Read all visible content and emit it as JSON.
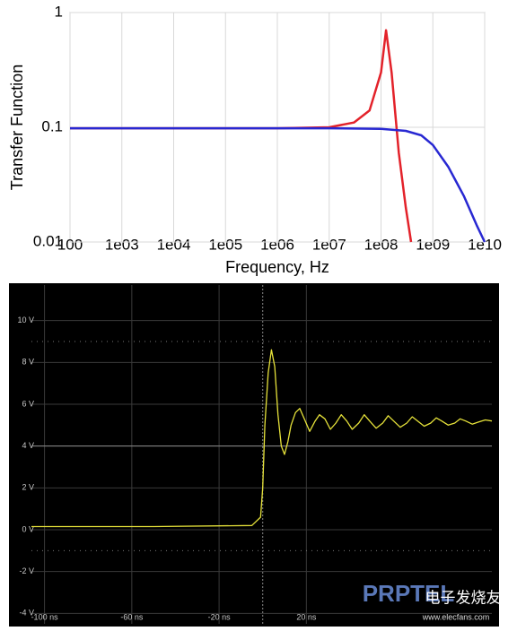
{
  "chart_data": [
    {
      "type": "line",
      "xscale": "log",
      "yscale": "log",
      "ylabel": "Transfer Function",
      "xlabel": "Frequency, Hz",
      "xlim": [
        100,
        10000000000
      ],
      "ylim": [
        0.01,
        1
      ],
      "xticks": [
        100,
        {
          "value": 1000,
          "label": "1e03"
        },
        {
          "value": 10000,
          "label": "1e04"
        },
        {
          "value": 100000,
          "label": "1e05"
        },
        {
          "value": 1000000,
          "label": "1e06"
        },
        {
          "value": 10000000,
          "label": "1e07"
        },
        {
          "value": 100000000,
          "label": "1e08"
        },
        {
          "value": 1000000000,
          "label": "1e09"
        },
        {
          "value": 10000000000,
          "label": "1e10"
        }
      ],
      "yticks": [
        0.01,
        0.1,
        1
      ],
      "grid": true,
      "series": [
        {
          "color": "#e3222a",
          "x": [
            100,
            1000,
            10000,
            100000,
            1000000,
            10000000,
            30000000,
            60000000,
            100000000,
            125000000,
            160000000,
            220000000,
            300000000,
            380000000
          ],
          "values": [
            0.098,
            0.098,
            0.098,
            0.098,
            0.098,
            0.1,
            0.11,
            0.14,
            0.3,
            0.7,
            0.3,
            0.06,
            0.02,
            0.01
          ]
        },
        {
          "color": "#2828d2",
          "x": [
            100,
            1000,
            10000,
            100000,
            1000000,
            10000000,
            100000000,
            300000000,
            600000000,
            1000000000,
            2000000000,
            4000000000,
            7000000000,
            10000000000
          ],
          "values": [
            0.098,
            0.098,
            0.098,
            0.098,
            0.098,
            0.098,
            0.097,
            0.093,
            0.085,
            0.07,
            0.045,
            0.025,
            0.014,
            0.01
          ]
        }
      ]
    },
    {
      "type": "line",
      "background": "#000000",
      "xlim": [
        -106,
        105
      ],
      "ylim": [
        -4.5,
        11.7
      ],
      "xticks": [
        {
          "value": -100,
          "label": "-100 ns"
        },
        {
          "value": -60,
          "label": "-60 ns"
        },
        {
          "value": -20,
          "label": "-20 ns"
        },
        {
          "value": 20,
          "label": "20 ns"
        }
      ],
      "yticks": [
        {
          "value": 10,
          "label": "10 V"
        },
        {
          "value": 8,
          "label": "8 V"
        },
        {
          "value": 6,
          "label": "6 V"
        },
        {
          "value": 4,
          "label": "4 V"
        },
        {
          "value": 2,
          "label": "2 V"
        },
        {
          "value": 0,
          "label": "0 V"
        },
        {
          "value": -2,
          "label": "-2 V"
        },
        {
          "value": -4,
          "label": "-4 V"
        }
      ],
      "grid": true,
      "series": [
        {
          "color": "#e6e23a",
          "x": [
            -106,
            -50,
            -5,
            -1,
            0,
            1,
            2.5,
            4,
            5.5,
            7,
            8.5,
            10,
            11.5,
            13,
            15,
            17,
            19.5,
            21.5,
            24,
            26,
            28.5,
            31,
            33.5,
            36,
            38.5,
            41,
            44,
            46.5,
            49,
            52,
            55,
            57.5,
            60,
            63,
            66,
            68.5,
            71,
            74,
            77,
            79.5,
            82,
            85,
            88,
            90.5,
            93,
            96,
            99,
            102,
            105
          ],
          "values": [
            0.15,
            0.15,
            0.2,
            0.6,
            2,
            5,
            7.5,
            8.6,
            7.8,
            5.5,
            4,
            3.6,
            4.2,
            5,
            5.6,
            5.8,
            5.2,
            4.7,
            5.2,
            5.5,
            5.3,
            4.8,
            5.1,
            5.5,
            5.2,
            4.8,
            5.1,
            5.5,
            5.2,
            4.85,
            5.1,
            5.45,
            5.2,
            4.9,
            5.1,
            5.4,
            5.2,
            4.95,
            5.1,
            5.35,
            5.2,
            5.0,
            5.1,
            5.3,
            5.2,
            5.05,
            5.15,
            5.25,
            5.2
          ]
        }
      ],
      "annotations": [
        "PRPTEL",
        "电子发烧友",
        "www.elecfans.com"
      ]
    }
  ]
}
